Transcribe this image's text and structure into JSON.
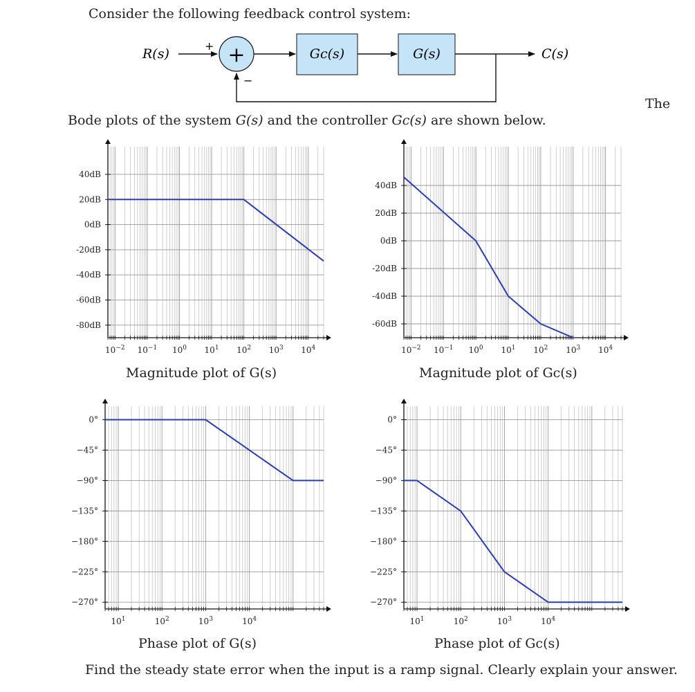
{
  "intro_text": "Consider the following feedback control system:",
  "the_word": "The",
  "bode_sentence": {
    "part1": "Bode plots of the system ",
    "g_label": "G(s)",
    "part2": " and the controller ",
    "gc_label": "Gc(s)",
    "part3": " are shown below."
  },
  "question": "Find the steady state error when the input is a ramp signal. Clearly explain your answer.",
  "diagram": {
    "input_label": "R(s)",
    "output_label": "C(s)",
    "sum_symbol": "+",
    "plus_sign": "+",
    "minus_sign": "−",
    "block1_label": "Gc(s)",
    "block2_label": "G(s)",
    "block_fill": "#c5e4f7",
    "junction_fill": "#c5e4f7"
  },
  "colors": {
    "line": "#2b3bb3",
    "grid_major": "#999999",
    "grid_minor": "#bbbbbb"
  },
  "chart_data": [
    {
      "id": "mag_g",
      "type": "line",
      "title": "Magnitude plot of G(s)",
      "xscale": "log",
      "x_ticks": [
        "10−2",
        "10−1",
        "100",
        "101",
        "102",
        "103",
        "104"
      ],
      "y_ticks": [
        "40dB",
        "20dB",
        "0dB",
        "-20dB",
        "-40dB",
        "-60dB",
        "-80dB"
      ],
      "y_tick_values": [
        40,
        20,
        0,
        -20,
        -40,
        -60,
        -80
      ],
      "xlim": [
        0.006,
        30000
      ],
      "ylim": [
        -90,
        62
      ],
      "series": [
        {
          "x": [
            0.006,
            100,
            30000
          ],
          "y": [
            20,
            20,
            -29
          ]
        }
      ]
    },
    {
      "id": "mag_gc",
      "type": "line",
      "title": "Magnitude plot of Gc(s)",
      "xscale": "log",
      "x_ticks": [
        "10−2",
        "10−1",
        "100",
        "101",
        "102",
        "103",
        "104"
      ],
      "y_ticks": [
        "40dB",
        "20dB",
        "0dB",
        "-20dB",
        "-40dB",
        "-60dB"
      ],
      "y_tick_values": [
        40,
        20,
        0,
        -20,
        -40,
        -60
      ],
      "xlim": [
        0.006,
        30000
      ],
      "ylim": [
        -70,
        68
      ],
      "series": [
        {
          "x": [
            0.006,
            1,
            10,
            100,
            1000
          ],
          "y": [
            46,
            0,
            -40,
            -60,
            -70
          ]
        }
      ]
    },
    {
      "id": "phase_g",
      "type": "line",
      "title": "Phase plot of G(s)",
      "xscale": "log",
      "x_ticks": [
        "101",
        "102",
        "103",
        "104"
      ],
      "y_ticks": [
        "0°",
        "−45°",
        "−90°",
        "−135°",
        "−180°",
        "−225°",
        "−270°"
      ],
      "y_tick_values": [
        0,
        -45,
        -90,
        -135,
        -180,
        -225,
        -270
      ],
      "xlim": [
        5,
        500000
      ],
      "ylim": [
        -280,
        20
      ],
      "series": [
        {
          "x": [
            5,
            1000,
            100000,
            500000
          ],
          "y": [
            0,
            0,
            -90,
            -90
          ]
        }
      ]
    },
    {
      "id": "phase_gc",
      "type": "line",
      "title": "Phase plot of Gc(s)",
      "xscale": "log",
      "x_ticks": [
        "101",
        "102",
        "103",
        "104"
      ],
      "y_ticks": [
        "0°",
        "−45°",
        "−90°",
        "−135°",
        "−180°",
        "−225°",
        "−270°"
      ],
      "y_tick_values": [
        0,
        -45,
        -90,
        -135,
        -180,
        -225,
        -270
      ],
      "xlim": [
        5,
        500000
      ],
      "ylim": [
        -280,
        20
      ],
      "series": [
        {
          "x": [
            5,
            10,
            100,
            1000,
            10000,
            500000
          ],
          "y": [
            -90,
            -90,
            -135,
            -225,
            -270,
            -270
          ]
        }
      ]
    }
  ]
}
